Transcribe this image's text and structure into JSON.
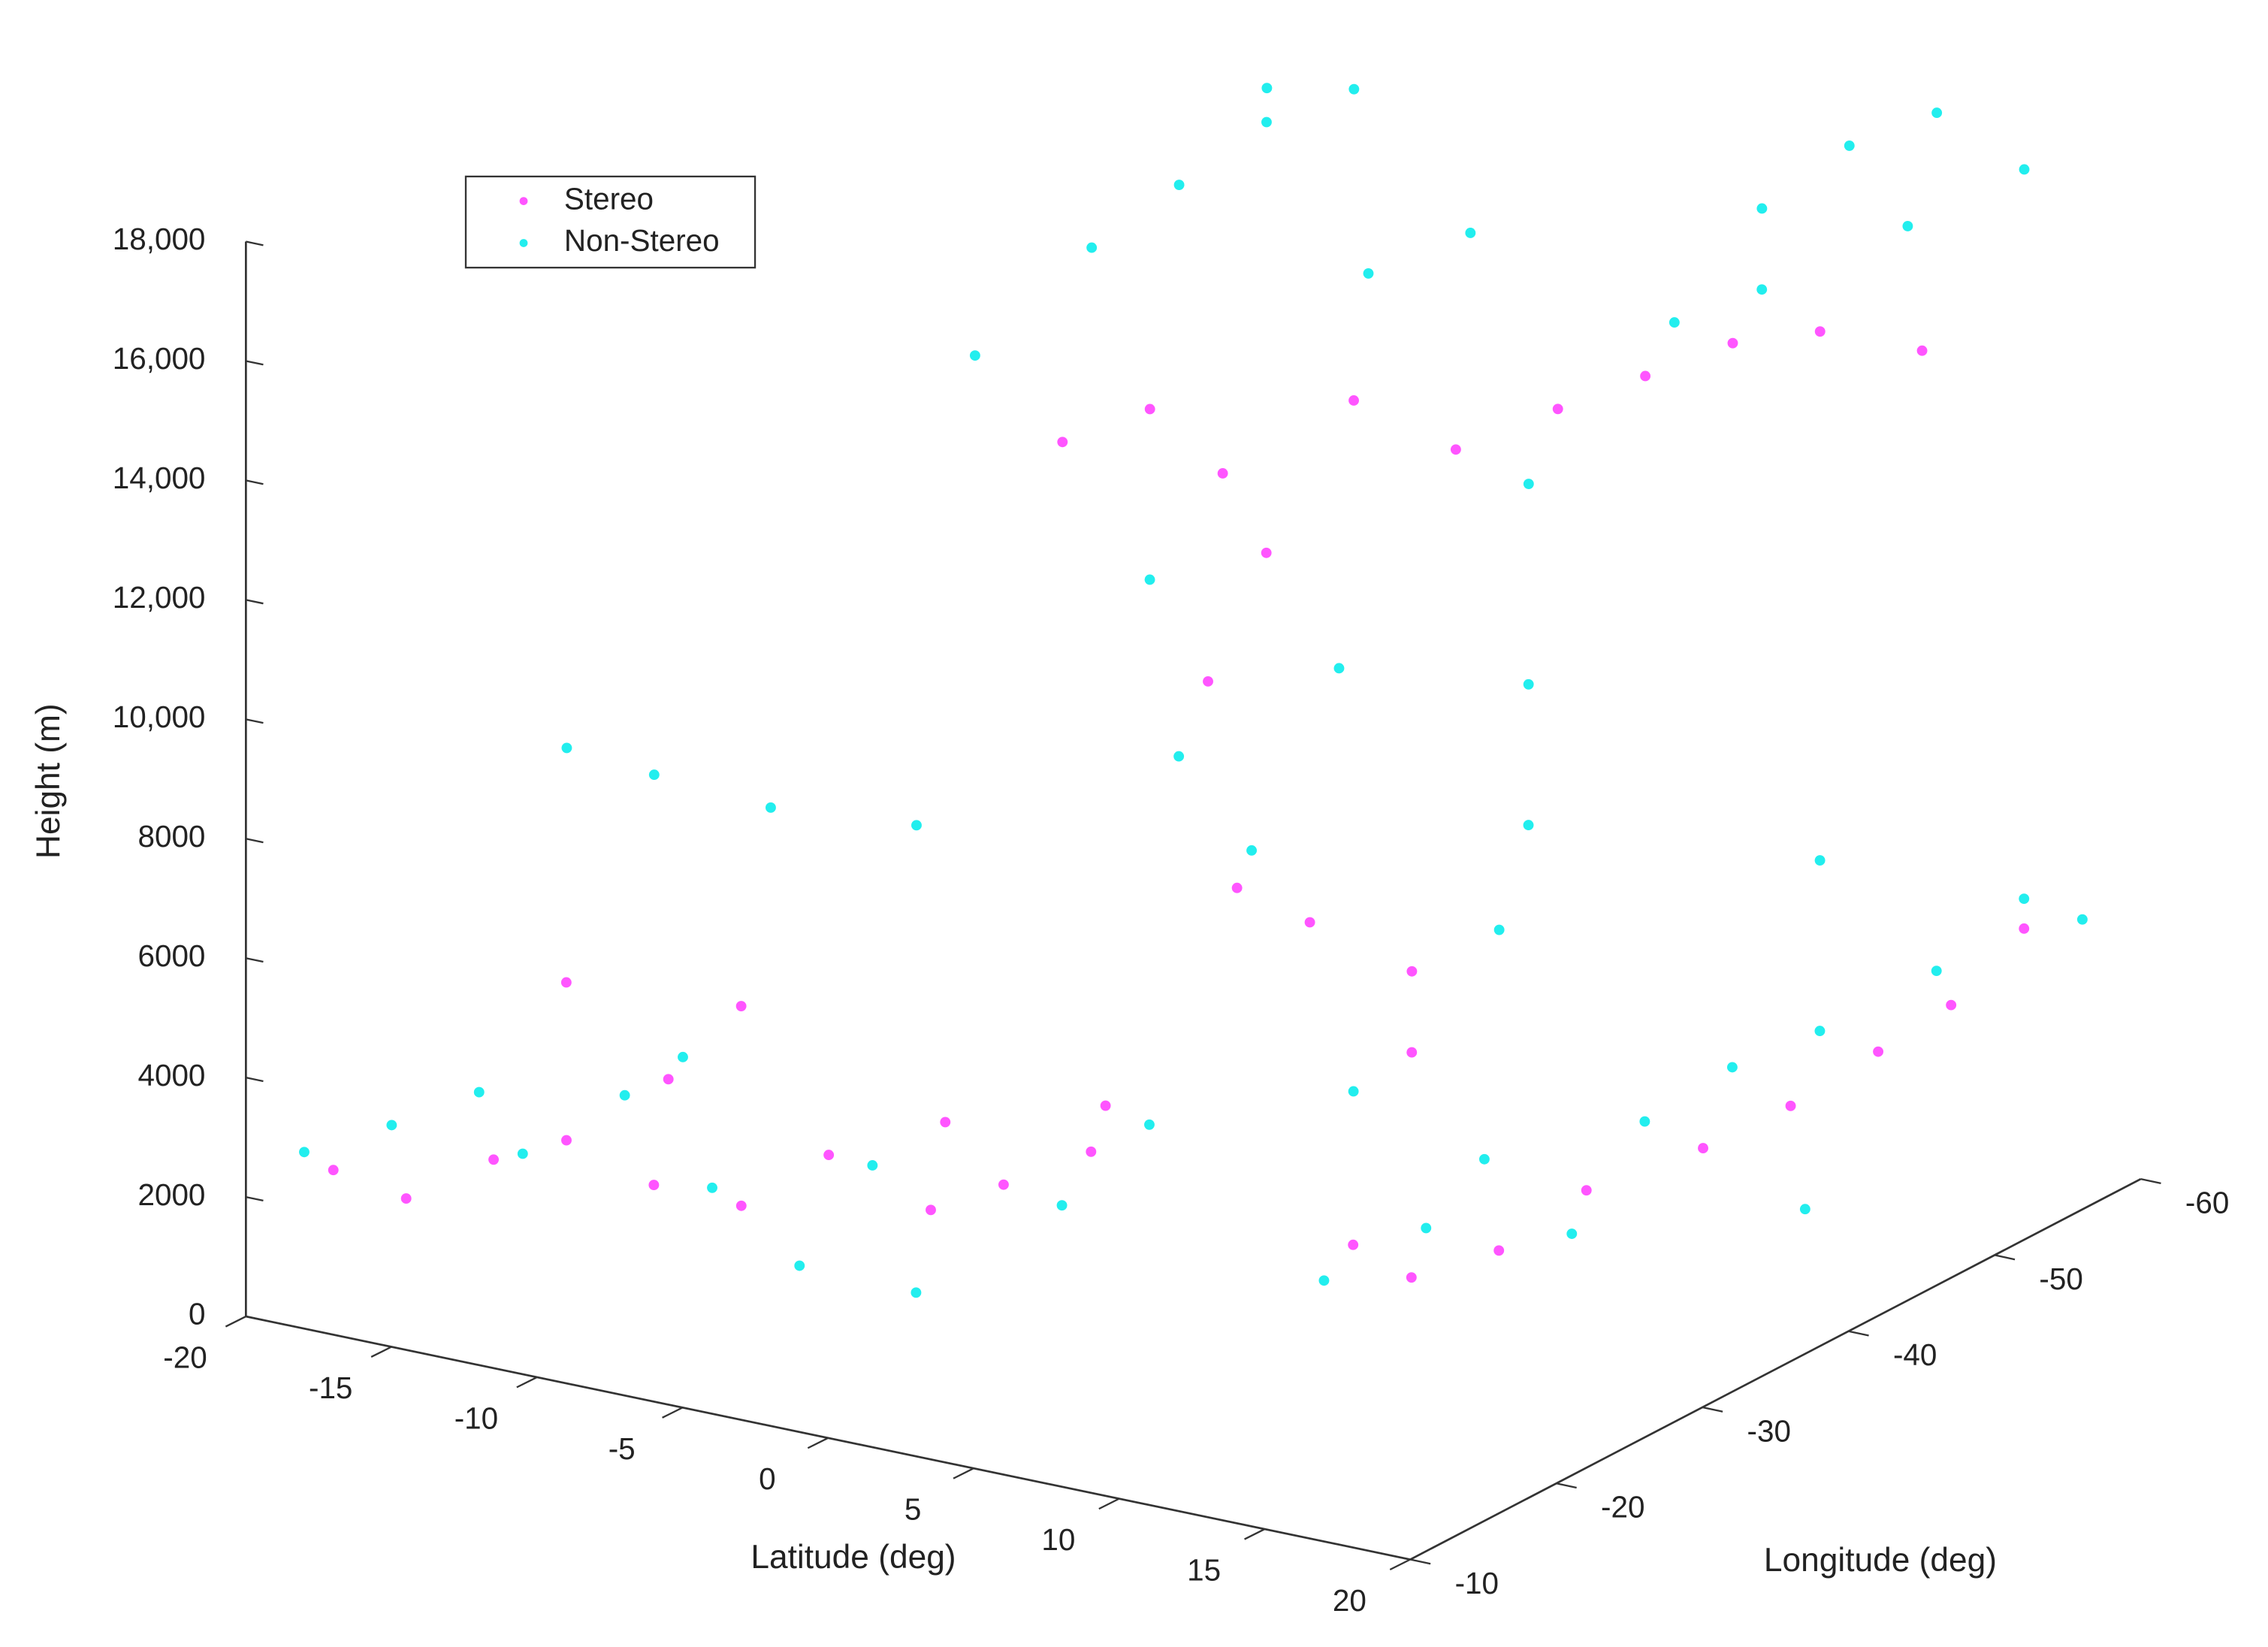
{
  "chart_data": {
    "type": "scatter3d",
    "x_label": "Latitude (deg)",
    "y_label": "Longitude (deg)",
    "z_label": "Height (m)",
    "xlim": [
      -20,
      20
    ],
    "ylim": [
      -10,
      -60
    ],
    "zlim": [
      0,
      18000
    ],
    "xticks": [
      -20,
      -15,
      -10,
      -5,
      0,
      5,
      10,
      15,
      20
    ],
    "yticks": [
      -10,
      -20,
      -30,
      -40,
      -50,
      -60
    ],
    "zticks": [
      0,
      2000,
      4000,
      6000,
      8000,
      {
        "value": 10000,
        "label": "10,000"
      },
      {
        "value": 12000,
        "label": "12,000"
      },
      {
        "value": 14000,
        "label": "14,000"
      },
      {
        "value": 16000,
        "label": "16,000"
      },
      {
        "value": 18000,
        "label": "18,000"
      }
    ],
    "legend": "northwest",
    "series": [
      {
        "name": "Stereo",
        "color": "#ff55ff",
        "x": [
          -18,
          -16,
          -14,
          -12,
          -10,
          -9,
          -8,
          -7,
          -6,
          -4,
          -3,
          -2,
          0,
          1,
          -11,
          -6,
          -4,
          -2,
          0,
          2,
          -1,
          1,
          3,
          4,
          6,
          8,
          10,
          5,
          6,
          15,
          13,
          8,
          9,
          11,
          12,
          14,
          15,
          16,
          17,
          18
        ],
        "y": [
          -12,
          -13,
          -15,
          -16,
          -18,
          -17,
          -20,
          -18,
          -22,
          -25,
          -24,
          -26,
          -28,
          -27,
          -14,
          -38,
          -40,
          -41,
          -40,
          -42,
          -38,
          -36,
          -37,
          -45,
          -48,
          -50,
          -52,
          -40,
          -38,
          -55,
          -52,
          -30,
          -32,
          -34,
          -38,
          -42,
          -46,
          -50,
          -53,
          -56
        ],
        "z": [
          2400,
          2000,
          2600,
          3000,
          2200,
          4200,
          1800,
          5500,
          2600,
          1500,
          3200,
          2000,
          2500,
          3500,
          6000,
          12500,
          13000,
          12000,
          11000,
          13500,
          9000,
          6000,
          5500,
          12500,
          13000,
          13500,
          14000,
          4500,
          3500,
          14000,
          14500,
          1500,
          800,
          1200,
          1800,
          2200,
          2500,
          3000,
          3500,
          4500
        ]
      },
      {
        "name": "Non-Stereo",
        "color": "#22eeee",
        "x": [
          -19,
          -17,
          -15,
          -13,
          -11,
          -9,
          -8,
          -6,
          -5,
          -3,
          -1,
          1,
          -15,
          -13,
          -10,
          -7,
          -8,
          -6,
          -4,
          -2,
          0,
          -3,
          -1,
          1,
          3,
          2,
          4,
          6,
          7,
          8,
          8,
          5,
          -5,
          10,
          12,
          14,
          16,
          13,
          11,
          9,
          7,
          9,
          10,
          12,
          13,
          14,
          15,
          17,
          18,
          19,
          16,
          14
        ],
        "y": [
          -12,
          -14,
          -16,
          -15,
          -18,
          -20,
          -16,
          -20,
          -23,
          -22,
          -28,
          -30,
          -22,
          -24,
          -26,
          -30,
          -36,
          -40,
          -42,
          -44,
          -46,
          -38,
          -36,
          -37,
          -39,
          -43,
          -46,
          -46,
          -44,
          -42,
          -40,
          -36,
          -50,
          -54,
          -56,
          -58,
          -60,
          -58,
          -52,
          -50,
          -30,
          -33,
          -35,
          -37,
          -40,
          -44,
          -48,
          -52,
          -56,
          -58,
          -45,
          -50
        ],
        "z": [
          2600,
          3000,
          3500,
          2800,
          3600,
          2000,
          4800,
          1000,
          2400,
          600,
          1500,
          2800,
          8500,
          8000,
          7500,
          7000,
          14000,
          15500,
          16500,
          17500,
          18000,
          10500,
          8000,
          6500,
          9500,
          15500,
          16000,
          12000,
          9000,
          7000,
          5500,
          3000,
          17000,
          16000,
          17000,
          17500,
          16500,
          15500,
          15000,
          14500,
          800,
          1500,
          2500,
          1200,
          2800,
          3300,
          3500,
          4200,
          5000,
          4500,
          1000,
          6000
        ]
      }
    ]
  }
}
